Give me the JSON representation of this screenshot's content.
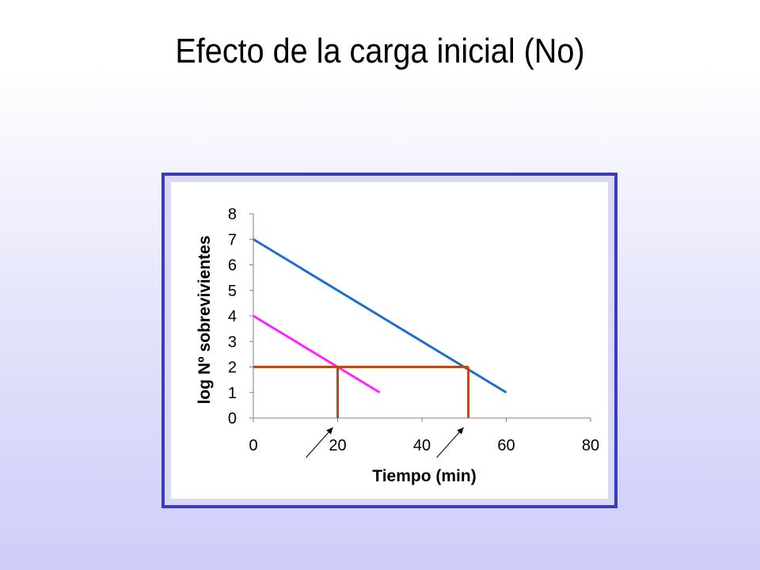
{
  "slide": {
    "title": "Efecto de la carga inicial (No)"
  },
  "chart_data": {
    "type": "line",
    "xlabel": "Tiempo (min)",
    "ylabel": "log Nº sobrevivientes",
    "xlim": [
      0,
      80
    ],
    "ylim": [
      0,
      8
    ],
    "xticks": [
      0,
      20,
      40,
      60,
      80
    ],
    "yticks": [
      0,
      1,
      2,
      3,
      4,
      5,
      6,
      7,
      8
    ],
    "grid": false,
    "legend": "none",
    "series": [
      {
        "color": "#1f6fc8",
        "x": [
          0,
          60
        ],
        "y": [
          7,
          1
        ]
      },
      {
        "color": "#ff22ff",
        "x": [
          0,
          30
        ],
        "y": [
          4,
          1
        ]
      }
    ],
    "reference_lines": {
      "color": "#b84a14",
      "horizontal": {
        "y": 2,
        "x_from": 0,
        "x_to": 51
      },
      "vertical": [
        {
          "x": 20,
          "y_from": 0,
          "y_to": 2
        },
        {
          "x": 51,
          "y_from": 0,
          "y_to": 2
        }
      ]
    },
    "annotations": [
      {
        "type": "arrow",
        "points_to_x": 20
      },
      {
        "type": "arrow",
        "points_to_x": 51
      }
    ]
  }
}
